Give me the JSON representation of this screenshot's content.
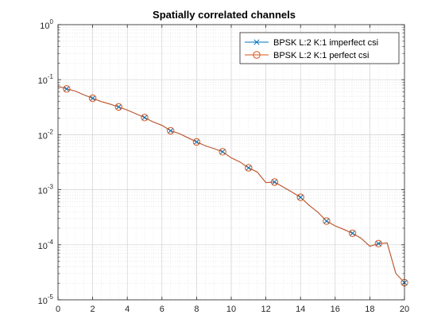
{
  "chart_data": {
    "type": "line",
    "title": "Spatially correlated channels",
    "xlabel": "",
    "ylabel": "",
    "xlim": [
      0,
      20
    ],
    "ylim": [
      1e-05,
      1
    ],
    "yscale": "log",
    "grid": true,
    "minor_grid": true,
    "legend_position": "top-right",
    "x_ticks": [
      0,
      2,
      4,
      6,
      8,
      10,
      12,
      14,
      16,
      18,
      20
    ],
    "x_tick_labels": [
      "0",
      "2",
      "4",
      "6",
      "8",
      "10",
      "12",
      "14",
      "16",
      "18",
      "20"
    ],
    "y_ticks": [
      1e-05,
      0.0001,
      0.001,
      0.01,
      0.1,
      1
    ],
    "y_tick_labels": [
      {
        "base": "10",
        "exp": "-5"
      },
      {
        "base": "10",
        "exp": "-4"
      },
      {
        "base": "10",
        "exp": "-3"
      },
      {
        "base": "10",
        "exp": "-2"
      },
      {
        "base": "10",
        "exp": "-1"
      },
      {
        "base": "10",
        "exp": "0"
      }
    ],
    "x": [
      0,
      0.5,
      1,
      1.5,
      2,
      2.5,
      3,
      3.5,
      4,
      4.5,
      5,
      5.5,
      6,
      6.5,
      7,
      7.5,
      8,
      8.5,
      9,
      9.5,
      10,
      10.5,
      11,
      11.5,
      12,
      12.5,
      13,
      13.5,
      14,
      14.5,
      15,
      15.5,
      16,
      16.5,
      17,
      17.5,
      18,
      18.5,
      19,
      19.5,
      20
    ],
    "series": [
      {
        "name": "BPSK L:2 K:1 imperfect csi",
        "color": "#0072bd",
        "marker": "x",
        "values": [
          0.076,
          0.068,
          0.062,
          0.053,
          0.046,
          0.04,
          0.036,
          0.032,
          0.028,
          0.024,
          0.0205,
          0.017,
          0.0148,
          0.0118,
          0.0105,
          0.0088,
          0.0074,
          0.0063,
          0.0056,
          0.0049,
          0.0038,
          0.0032,
          0.0025,
          0.0021,
          0.00135,
          0.00138,
          0.00112,
          0.00091,
          0.00073,
          0.00052,
          0.00039,
          0.00027,
          0.00022,
          0.00019,
          0.000162,
          0.000131,
          9.4e-05,
          0.000105,
          0.000108,
          3.02e-05,
          2.05e-05
        ]
      },
      {
        "name": "BPSK L:2 K:1 perfect csi",
        "color": "#d95319",
        "marker": "o",
        "values": [
          0.076,
          0.068,
          0.062,
          0.053,
          0.046,
          0.04,
          0.036,
          0.032,
          0.028,
          0.024,
          0.0205,
          0.017,
          0.0148,
          0.0118,
          0.0105,
          0.0088,
          0.0074,
          0.0063,
          0.0056,
          0.0049,
          0.0038,
          0.0032,
          0.0025,
          0.0021,
          0.00135,
          0.00138,
          0.00112,
          0.00091,
          0.00073,
          0.00052,
          0.00039,
          0.00027,
          0.00022,
          0.00019,
          0.000162,
          0.000131,
          9.4e-05,
          0.000105,
          0.000108,
          3.02e-05,
          2.05e-05
        ]
      }
    ],
    "marker_x": [
      0.5,
      2,
      3.5,
      5,
      6.5,
      8,
      9.5,
      11,
      12.5,
      14,
      15.5,
      17,
      18.5,
      20
    ]
  }
}
